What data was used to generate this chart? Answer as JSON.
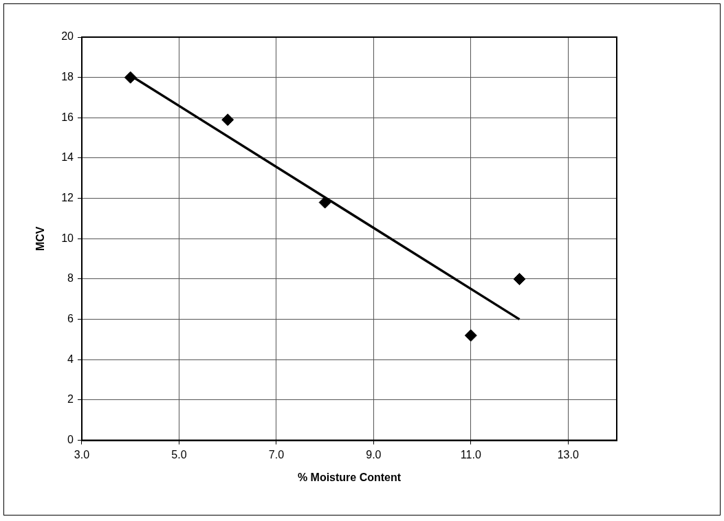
{
  "chart_data": {
    "type": "scatter",
    "xlabel": "% Moisture Content",
    "ylabel": "MCV",
    "xlim": [
      3,
      14
    ],
    "xticks": [
      {
        "value": 3,
        "label": "3.0"
      },
      {
        "value": 5,
        "label": "5.0"
      },
      {
        "value": 7,
        "label": "7.0"
      },
      {
        "value": 9,
        "label": "9.0"
      },
      {
        "value": 11,
        "label": "11.0"
      },
      {
        "value": 13,
        "label": "13.0"
      }
    ],
    "ylim": [
      0,
      20
    ],
    "yticks": [
      0,
      2,
      4,
      6,
      8,
      10,
      12,
      14,
      16,
      18,
      20
    ],
    "grid": true,
    "legend": false,
    "series": [
      {
        "type": "scatter",
        "color": "#000000",
        "marker": "diamond",
        "x": [
          4,
          6,
          8,
          11,
          12
        ],
        "values": [
          18,
          15.9,
          11.8,
          5.2,
          8
        ]
      },
      {
        "type": "line",
        "color": "#000000",
        "marker": "none",
        "line_style": "solid",
        "x": [
          4,
          12
        ],
        "values": [
          18.1,
          6.0
        ]
      }
    ]
  }
}
